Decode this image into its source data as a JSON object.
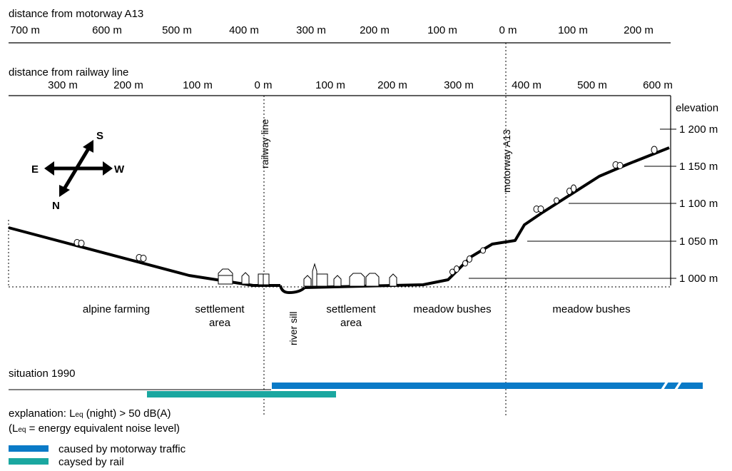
{
  "colors": {
    "motorway": "#0a7ac7",
    "rail": "#1aa7a0",
    "line": "#000000"
  },
  "top_axis": {
    "title": "distance from motorway A13",
    "ticks": [
      "700 m",
      "600 m",
      "500 m",
      "400 m",
      "300 m",
      "200 m",
      "100 m",
      "0 m",
      "100 m",
      "200 m"
    ]
  },
  "rail_axis": {
    "title": "distance from railway line",
    "ticks": [
      "300 m",
      "200 m",
      "100 m",
      "0 m",
      "100 m",
      "200 m",
      "300 m",
      "400 m",
      "500 m",
      "600 m"
    ]
  },
  "elevation": {
    "title": "elevation",
    "ticks": [
      "1 200 m",
      "1 150 m",
      "1 100 m",
      "1 050 m",
      "1 000 m"
    ]
  },
  "compass": {
    "s": "S",
    "e": "E",
    "w": "W",
    "n": "N"
  },
  "vertical_labels": {
    "railway": "railway line",
    "motorway": "motorway A13",
    "river": "river sill"
  },
  "zones": [
    {
      "lines": [
        "alpine farming"
      ]
    },
    {
      "lines": [
        "settlement",
        "area"
      ]
    },
    {
      "lines": [
        "settlement",
        "area"
      ]
    },
    {
      "lines": [
        "meadow bushes"
      ]
    },
    {
      "lines": [
        "meadow bushes"
      ]
    }
  ],
  "situation": {
    "title": "situation 1990"
  },
  "explanation": {
    "line1_prefix": "explanation: L",
    "line1_sub": "eq",
    "line1_suffix": " (night) > 50 dB(A)",
    "line2_prefix": "(L",
    "line2_sub": "eq",
    "line2_suffix": " = energy  equivalent noise  level)"
  },
  "legend": [
    {
      "label": "caused by motorway traffic",
      "color_key": "motorway"
    },
    {
      "label": "caysed by rail",
      "color_key": "rail"
    }
  ]
}
